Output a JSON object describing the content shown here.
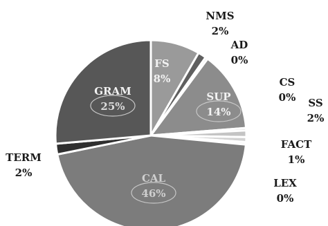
{
  "chart_data": {
    "type": "pie",
    "title": "",
    "slices": [
      {
        "name": "FS",
        "pct_label": "8%",
        "value": 8,
        "color": "#9a9a9a"
      },
      {
        "name": "NMS",
        "pct_label": "2%",
        "value": 2,
        "color": "#5f5f5f"
      },
      {
        "name": "AD",
        "pct_label": "0%",
        "value": 0,
        "color": "#dcdcdc"
      },
      {
        "name": "SUP",
        "pct_label": "14%",
        "value": 14,
        "color": "#8c8c8c"
      },
      {
        "name": "CS",
        "pct_label": "0%",
        "value": 0,
        "color": "#d6d6d6"
      },
      {
        "name": "SS",
        "pct_label": "2%",
        "value": 2,
        "color": "#c4c4c4"
      },
      {
        "name": "FACT",
        "pct_label": "1%",
        "value": 1,
        "color": "#d2d2d2"
      },
      {
        "name": "LEX",
        "pct_label": "0%",
        "value": 0,
        "color": "#eeeeee"
      },
      {
        "name": "CAL",
        "pct_label": "46%",
        "value": 46,
        "color": "#7c7c7c"
      },
      {
        "name": "TERM",
        "pct_label": "2%",
        "value": 2,
        "color": "#2f2f2f"
      },
      {
        "name": "GRAM",
        "pct_label": "25%",
        "value": 25,
        "color": "#575757"
      }
    ],
    "circled": [
      "GRAM",
      "SUP",
      "CAL"
    ],
    "legend": "none"
  }
}
